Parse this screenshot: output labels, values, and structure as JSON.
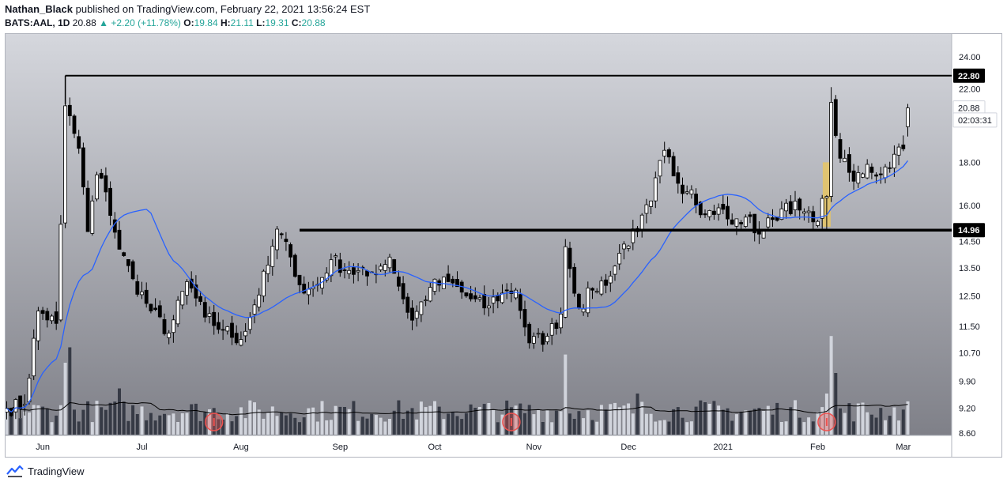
{
  "header": {
    "author": "Nathan_Black",
    "published_text": "published on TradingView.com, February 22, 2021 13:56:24 EST",
    "symbol": "BATS:AAL, 1D",
    "last": "20.88",
    "change_arrow": "▲",
    "change": "+2.20 (+11.78%)",
    "o_label": "O:",
    "o": "19.84",
    "h_label": "H:",
    "h": "21.11",
    "l_label": "L:",
    "l": "19.31",
    "c_label": "C:",
    "c": "20.88"
  },
  "footer": {
    "brand": "TradingView",
    "logo_icon": "tradingview-logo-icon"
  },
  "colors": {
    "up_fill": "#ffffff",
    "down_fill": "#000000",
    "ma": "#2962ff",
    "level_line": "#000000",
    "volume_up": "#d1d4dc",
    "volume_down": "#363a45",
    "highlight": "#e6c564",
    "event_marker": "#ef5350"
  },
  "chart_data": {
    "type": "candlestick",
    "price_axis": {
      "scale": "log",
      "ticks": [
        "24.00",
        "22.00",
        "20.88",
        "18.00",
        "16.00",
        "14.50",
        "13.50",
        "12.50",
        "11.50",
        "10.70",
        "9.90",
        "9.20",
        "8.60"
      ],
      "ylim": [
        8.6,
        24.0
      ]
    },
    "price_tags": [
      {
        "value": 22.8,
        "label": "22.80",
        "style": "level"
      },
      {
        "value": 20.88,
        "label": "20.88",
        "style": "last"
      },
      {
        "value": 20.2,
        "label": "02:03:31",
        "style": "countdown"
      },
      {
        "value": 14.96,
        "label": "14.96",
        "style": "level"
      }
    ],
    "horizontal_levels": [
      {
        "price": 22.8,
        "from": 13
      },
      {
        "price": 14.96,
        "from": 65
      }
    ],
    "highlight": {
      "index": 182,
      "low": 15.1,
      "high": 18.0
    },
    "time_axis": {
      "labels": [
        {
          "label": "Jun",
          "index": 8
        },
        {
          "label": "Jul",
          "index": 30
        },
        {
          "label": "Aug",
          "index": 52
        },
        {
          "label": "Sep",
          "index": 74
        },
        {
          "label": "Oct",
          "index": 95
        },
        {
          "label": "Nov",
          "index": 117
        },
        {
          "label": "Dec",
          "index": 138
        },
        {
          "label": "2021",
          "index": 159
        },
        {
          "label": "Feb",
          "index": 180
        },
        {
          "label": "Mar",
          "index": 199
        }
      ]
    },
    "event_markers": [
      46,
      112,
      182
    ],
    "key_points": [
      {
        "i": 0,
        "c": 9.2
      },
      {
        "i": 4,
        "c": 9.3
      },
      {
        "i": 7,
        "c": 12.0
      },
      {
        "i": 11,
        "c": 11.6
      },
      {
        "i": 12,
        "c": 15.2
      },
      {
        "i": 13,
        "c": 21.0
      },
      {
        "i": 16,
        "c": 18.7
      },
      {
        "i": 18,
        "c": 14.9
      },
      {
        "i": 20,
        "c": 17.4
      },
      {
        "i": 22,
        "c": 16.6
      },
      {
        "i": 25,
        "c": 14.2
      },
      {
        "i": 28,
        "c": 13.1
      },
      {
        "i": 32,
        "c": 12.0
      },
      {
        "i": 36,
        "c": 11.3
      },
      {
        "i": 40,
        "c": 13.0
      },
      {
        "i": 44,
        "c": 11.8
      },
      {
        "i": 48,
        "c": 11.4
      },
      {
        "i": 52,
        "c": 11.1
      },
      {
        "i": 55,
        "c": 12.2
      },
      {
        "i": 58,
        "c": 13.6
      },
      {
        "i": 60,
        "c": 15.0
      },
      {
        "i": 63,
        "c": 13.9
      },
      {
        "i": 66,
        "c": 12.6
      },
      {
        "i": 69,
        "c": 12.9
      },
      {
        "i": 72,
        "c": 13.8
      },
      {
        "i": 76,
        "c": 13.4
      },
      {
        "i": 80,
        "c": 13.2
      },
      {
        "i": 85,
        "c": 13.9
      },
      {
        "i": 88,
        "c": 12.4
      },
      {
        "i": 90,
        "c": 11.7
      },
      {
        "i": 94,
        "c": 12.8
      },
      {
        "i": 98,
        "c": 13.0
      },
      {
        "i": 102,
        "c": 12.5
      },
      {
        "i": 106,
        "c": 12.1
      },
      {
        "i": 110,
        "c": 12.6
      },
      {
        "i": 113,
        "c": 12.7
      },
      {
        "i": 116,
        "c": 11.0
      },
      {
        "i": 120,
        "c": 11.2
      },
      {
        "i": 123,
        "c": 11.9
      },
      {
        "i": 124,
        "c": 14.3
      },
      {
        "i": 127,
        "c": 12.1
      },
      {
        "i": 130,
        "c": 12.7
      },
      {
        "i": 134,
        "c": 13.2
      },
      {
        "i": 137,
        "c": 14.4
      },
      {
        "i": 140,
        "c": 14.9
      },
      {
        "i": 143,
        "c": 16.2
      },
      {
        "i": 146,
        "c": 18.6
      },
      {
        "i": 149,
        "c": 17.0
      },
      {
        "i": 152,
        "c": 16.7
      },
      {
        "i": 155,
        "c": 15.6
      },
      {
        "i": 158,
        "c": 15.9
      },
      {
        "i": 161,
        "c": 15.2
      },
      {
        "i": 164,
        "c": 15.5
      },
      {
        "i": 167,
        "c": 14.8
      },
      {
        "i": 170,
        "c": 15.4
      },
      {
        "i": 173,
        "c": 16.1
      },
      {
        "i": 176,
        "c": 15.8
      },
      {
        "i": 179,
        "c": 15.3
      },
      {
        "i": 182,
        "c": 16.4
      },
      {
        "i": 183,
        "c": 21.2
      },
      {
        "i": 185,
        "c": 18.2
      },
      {
        "i": 188,
        "c": 17.1
      },
      {
        "i": 191,
        "c": 17.9
      },
      {
        "i": 194,
        "c": 17.4
      },
      {
        "i": 197,
        "c": 18.4
      },
      {
        "i": 199,
        "c": 18.68
      },
      {
        "i": 200,
        "c": 20.88
      }
    ],
    "volume_spikes": [
      {
        "i": 13,
        "rel": 0.7
      },
      {
        "i": 14,
        "rel": 0.85
      },
      {
        "i": 25,
        "rel": 0.45
      },
      {
        "i": 124,
        "rel": 0.78
      },
      {
        "i": 140,
        "rel": 0.4
      },
      {
        "i": 182,
        "rel": 0.4
      },
      {
        "i": 183,
        "rel": 0.96
      },
      {
        "i": 184,
        "rel": 0.6
      }
    ]
  }
}
